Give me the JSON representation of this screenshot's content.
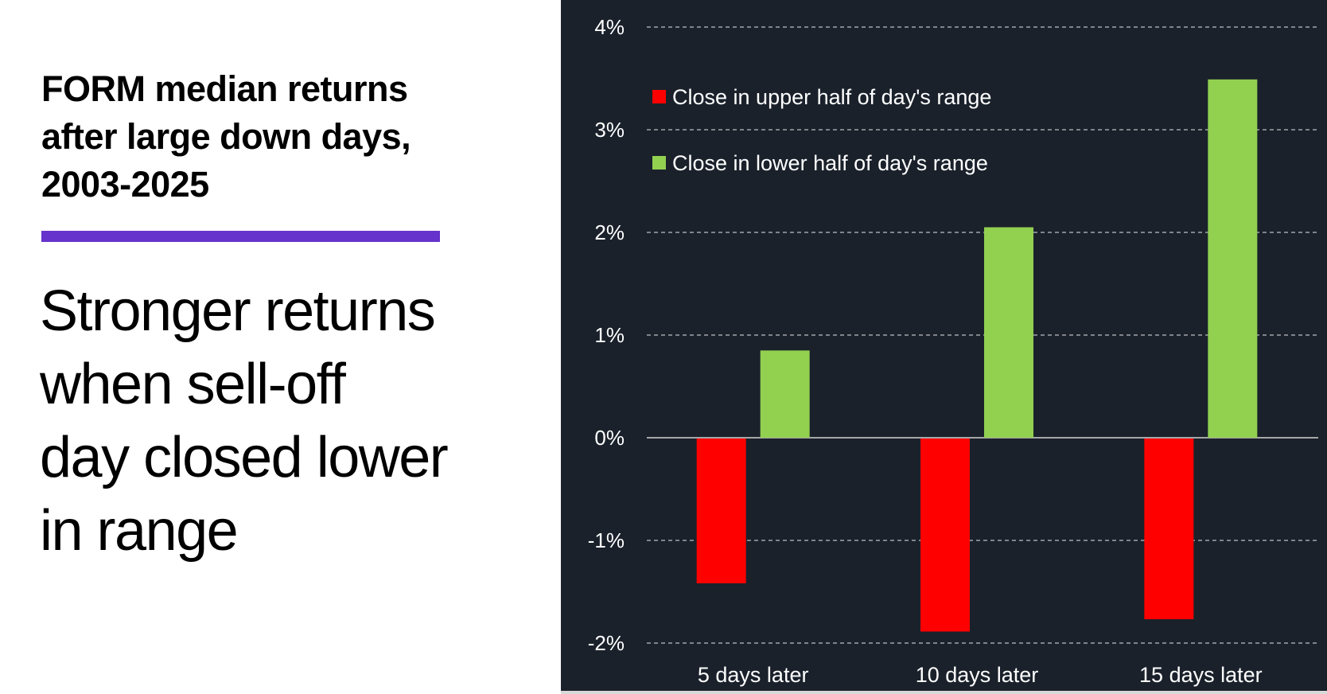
{
  "left": {
    "title": "FORM median returns after large down days, 2003-2025",
    "title_lines": [
      "FORM median returns",
      "after large down days,",
      "2003-2025"
    ],
    "subtitle_lines": [
      "Stronger returns",
      "when sell-off",
      "day closed lower",
      "in range"
    ],
    "accent_color": "#6633cc"
  },
  "colors": {
    "background": "#1a212b",
    "upper_half": "#ff0000",
    "lower_half": "#92d050",
    "gridline": "#bfbfbf",
    "zero_line": "#a6a6a6",
    "text": "#ffffff"
  },
  "chart_data": {
    "type": "bar",
    "title": "FORM median returns after large down days, 2003-2025",
    "subtitle": "Stronger returns when sell-off day closed lower in range",
    "categories": [
      "5 days later",
      "10 days later",
      "15 days later"
    ],
    "series": [
      {
        "name": "Close in upper half of day's range",
        "color": "#ff0000",
        "values": [
          -1.41,
          -1.88,
          -1.76
        ]
      },
      {
        "name": "Close in lower half of day's range",
        "color": "#92d050",
        "values": [
          0.85,
          2.05,
          3.49
        ]
      }
    ],
    "xlabel": "",
    "ylabel": "",
    "ylim": [
      -2,
      4
    ],
    "yticks": [
      4,
      3,
      2,
      1,
      0,
      -1,
      -2
    ],
    "ytick_labels": [
      "4%",
      "3%",
      "2%",
      "1%",
      "0%",
      "-1%",
      "-2%"
    ],
    "grid": "horizontal dashed",
    "legend_position": "upper left inside plot",
    "units": "%"
  }
}
